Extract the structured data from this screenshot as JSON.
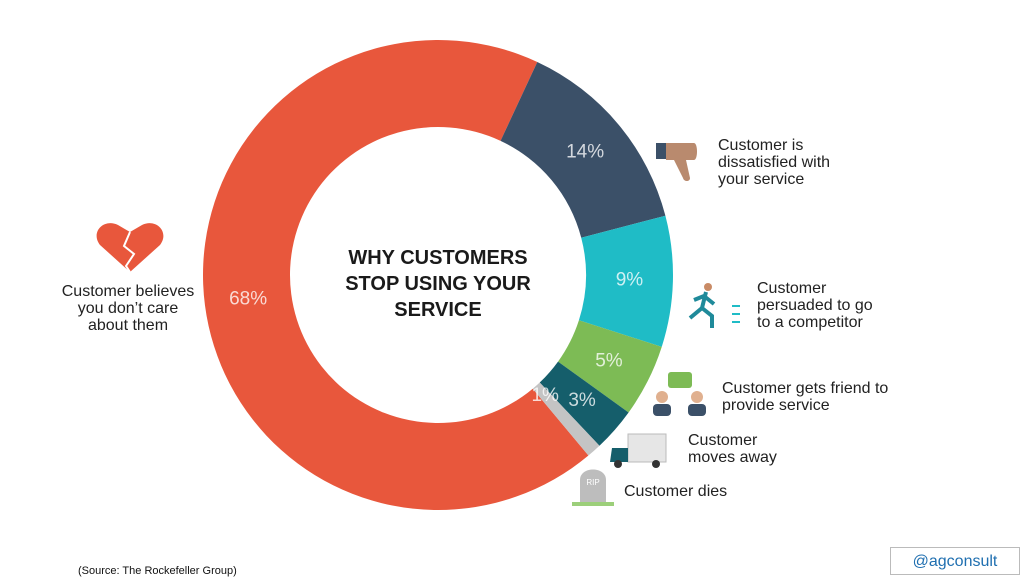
{
  "chart_data": {
    "type": "pie",
    "title": "WHY CUSTOMERS STOP USING YOUR SERVICE",
    "categories": [
      "Customer believes you don’t care about them",
      "Customer is dissatisfied with your service",
      "Customer persuaded to go to a competitor",
      "Customer gets friend to provide service",
      "Customer moves away",
      "Customer dies"
    ],
    "values": [
      68,
      14,
      9,
      5,
      3,
      1
    ],
    "value_labels": [
      "68%",
      "14%",
      "9%",
      "5%",
      "3%",
      "1%"
    ],
    "colors": [
      "#e8573c",
      "#3b5068",
      "#1fbcc6",
      "#7dbb55",
      "#155e6b",
      "#c4c4c4"
    ],
    "source": "(Source: The Rockefeller Group)",
    "credit": "@agconsult"
  }
}
